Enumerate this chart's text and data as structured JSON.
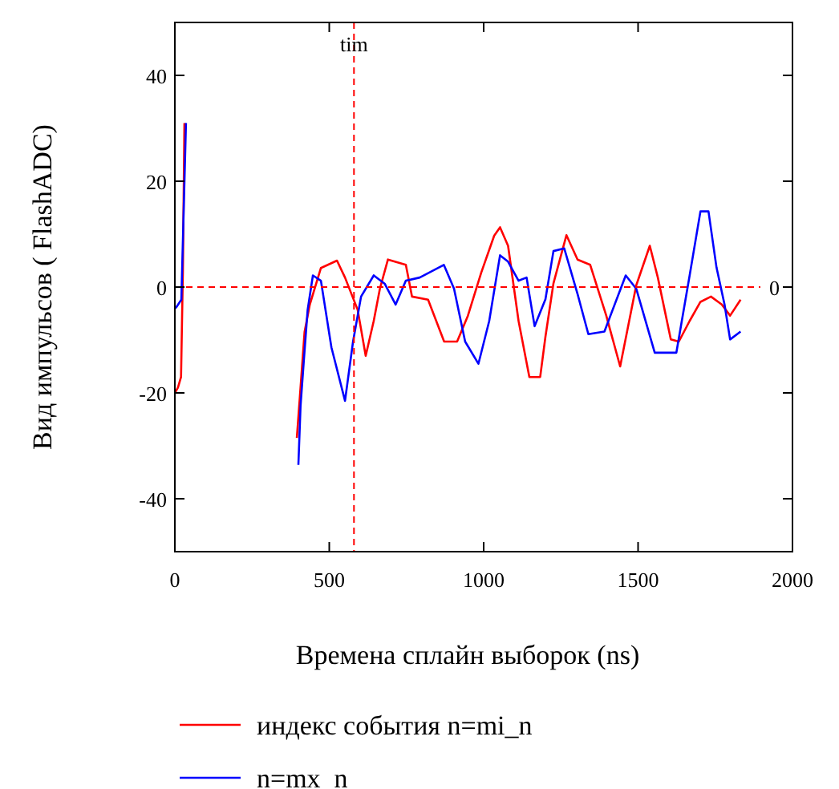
{
  "chart_data": {
    "type": "line",
    "xlabel": "Времена сплайн выборок (ns)",
    "ylabel": "Вид импульсов ( FlashADC)",
    "xlim": [
      0,
      2000
    ],
    "xticks": [
      0,
      500,
      1000,
      1500,
      2000
    ],
    "ylim": [
      -50,
      50
    ],
    "yticks": [
      -40,
      -20,
      0,
      20,
      40
    ],
    "grid": false,
    "legend": "bottom",
    "line_style": "solid",
    "marker": "none",
    "ref_lines": [
      {
        "axis": "x",
        "value": 580,
        "label": "tim",
        "color": "#ff0000",
        "line_style": "dashed"
      },
      {
        "axis": "y",
        "value": 0,
        "label": "0",
        "color": "#ff0000",
        "line_style": "dashed"
      }
    ],
    "series": [
      {
        "name": "индекс события n=mi_n",
        "color": "#ff0000",
        "x": [
          395,
          405,
          420,
          437,
          473,
          525,
          551,
          592,
          618,
          644,
          664,
          690,
          748,
          768,
          820,
          872,
          914,
          949,
          992,
          1034,
          1053,
          1079,
          1113,
          1148,
          1183,
          1200,
          1226,
          1268,
          1304,
          1345,
          1397,
          1442,
          1494,
          1538,
          1564,
          1606,
          1632,
          1667,
          1702,
          1736,
          1771,
          1798,
          1832
        ],
        "values": [
          -28.5,
          -20.6,
          -8.5,
          -3.3,
          3.6,
          5,
          1.8,
          -4.3,
          -13,
          -6.4,
          -0.3,
          5.2,
          4.2,
          -1.8,
          -2.4,
          -10.3,
          -10.3,
          -5.4,
          2.7,
          9.7,
          11.3,
          7.8,
          -6.4,
          -17,
          -17,
          -9.4,
          0.7,
          9.8,
          5.2,
          4.2,
          -5.4,
          -15,
          0.3,
          7.8,
          1.8,
          -9.9,
          -10.3,
          -6.4,
          -2.8,
          -1.8,
          -3.3,
          -5.4,
          -2.4
        ]
      },
      {
        "name": "n=mx_n",
        "color": "#0000ff",
        "x": [
          400,
          407,
          417,
          430,
          447,
          473,
          507,
          551,
          577,
          603,
          644,
          680,
          715,
          748,
          793,
          871,
          904,
          940,
          983,
          1018,
          1053,
          1079,
          1113,
          1139,
          1165,
          1200,
          1226,
          1261,
          1304,
          1339,
          1391,
          1460,
          1494,
          1554,
          1624,
          1667,
          1702,
          1728,
          1754,
          1780,
          1798,
          1832
        ],
        "values": [
          -33.6,
          -22.5,
          -14.4,
          -4.3,
          2.2,
          1.2,
          -11.4,
          -21.5,
          -10.3,
          -1.8,
          2.2,
          0.6,
          -3.3,
          1.2,
          1.8,
          4.2,
          -0.3,
          -10.3,
          -14.5,
          -6.4,
          6,
          4.8,
          1.2,
          1.8,
          -7.4,
          -2.3,
          6.8,
          7.3,
          -1.3,
          -8.9,
          -8.4,
          2.2,
          -0.3,
          -12.4,
          -12.4,
          2.2,
          14.3,
          14.3,
          3.7,
          -3.3,
          -9.9,
          -8.4
        ]
      },
      {
        "color": "#ff0000",
        "x": [
          0,
          10,
          20,
          26,
          31
        ],
        "values": [
          -20,
          -19,
          -17,
          3,
          31
        ]
      },
      {
        "color": "#0000ff",
        "x": [
          0,
          5,
          21,
          36
        ],
        "values": [
          -4,
          -3.8,
          -2.4,
          31
        ]
      }
    ]
  }
}
